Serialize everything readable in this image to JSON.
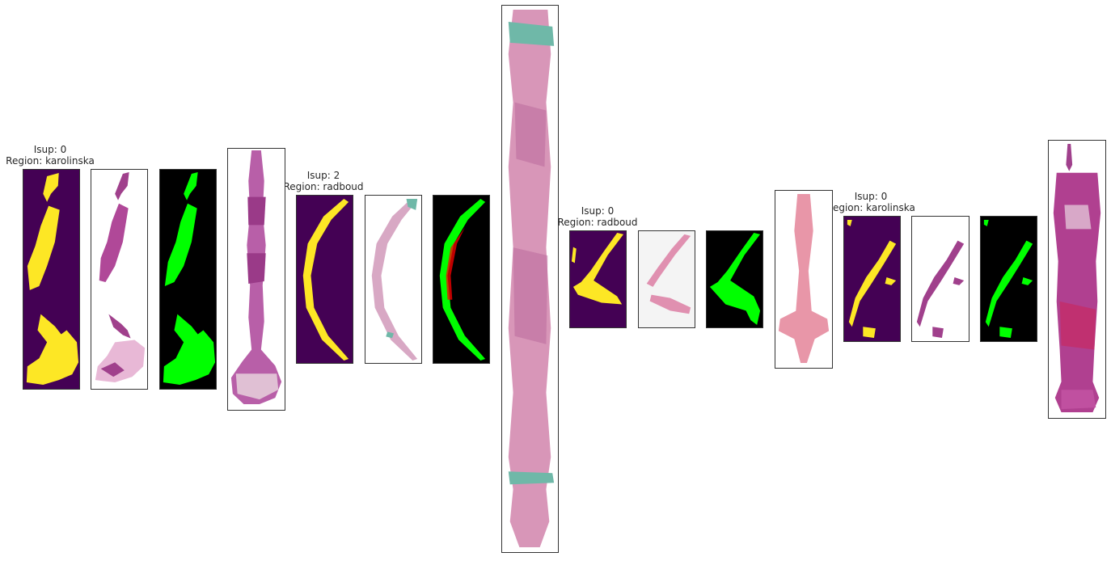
{
  "groups": [
    {
      "isup": "Isup: 0",
      "region": "Region: karolinska"
    },
    {
      "isup": "Isup: 2",
      "region": "Region: radboud"
    },
    {
      "isup": "Isup: 0",
      "region": "Region: radboud"
    },
    {
      "isup": "Isup: 0",
      "region": "Region: karolinska"
    }
  ],
  "colors": {
    "mask_background": "#440154",
    "mask_tissue": "#fde725",
    "overlay_background": "#000000",
    "overlay_tissue": "#00ff00",
    "overlay_cancer": "#ff0000",
    "stain_pink": "#e8a6c4",
    "stain_purple": "#a0408c",
    "stain_teal": "#6fb8a8"
  }
}
